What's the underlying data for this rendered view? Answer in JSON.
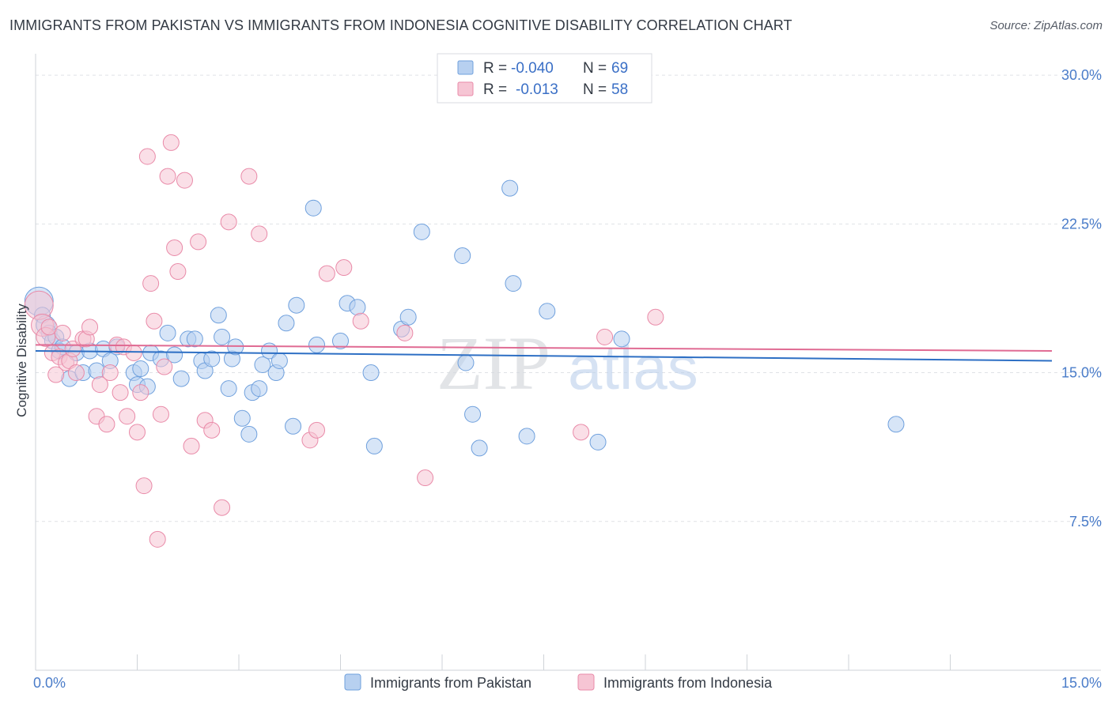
{
  "title": "IMMIGRANTS FROM PAKISTAN VS IMMIGRANTS FROM INDONESIA COGNITIVE DISABILITY CORRELATION CHART",
  "source": "Source: ZipAtlas.com",
  "watermark": {
    "zip": "ZIP",
    "atlas": "atlas"
  },
  "chart_data": {
    "type": "scatter",
    "ylabel": "Cognitive Disability",
    "xlim": [
      0,
      15
    ],
    "ylim": [
      0,
      31
    ],
    "x_ticks": [
      {
        "value": 0,
        "label": "0.0%"
      },
      {
        "value": 15,
        "label": "15.0%"
      }
    ],
    "x_minor_ticks": [
      1.5,
      3,
      4.5,
      6,
      7.5,
      9,
      10.5,
      12,
      13.5
    ],
    "y_ticks": [
      {
        "value": 7.5,
        "label": "7.5%"
      },
      {
        "value": 15,
        "label": "15.0%"
      },
      {
        "value": 22.5,
        "label": "22.5%"
      },
      {
        "value": 30,
        "label": "30.0%"
      }
    ],
    "legend": {
      "r_label": "R =",
      "n_label": "N =",
      "rows": [
        {
          "series": "Immigrants from Pakistan",
          "r": "-0.040",
          "n": "69"
        },
        {
          "series": "Immigrants from Indonesia",
          "r": "-0.013",
          "n": "58"
        }
      ]
    },
    "series": [
      {
        "name": "Immigrants from Pakistan",
        "color": "#6fa0dd",
        "fill": "#b7d0f0",
        "trend": {
          "x0": 0,
          "y0": 16.1,
          "x1": 15,
          "y1": 15.6
        },
        "trend_color": "#2d6fc4",
        "points": [
          [
            0.05,
            18.6,
            18
          ],
          [
            0.1,
            17.9,
            10
          ],
          [
            0.15,
            17.4,
            12
          ],
          [
            0.2,
            17.0,
            10
          ],
          [
            0.25,
            16.6,
            10
          ],
          [
            0.3,
            16.8,
            10
          ],
          [
            0.35,
            16.1,
            10
          ],
          [
            0.4,
            16.3,
            10
          ],
          [
            0.5,
            14.7,
            10
          ],
          [
            0.6,
            16.0,
            10
          ],
          [
            0.7,
            15.0,
            10
          ],
          [
            0.8,
            16.1,
            10
          ],
          [
            0.9,
            15.1,
            10
          ],
          [
            1.0,
            16.2,
            10
          ],
          [
            1.1,
            15.6,
            10
          ],
          [
            1.2,
            16.3,
            10
          ],
          [
            1.45,
            15.0,
            10
          ],
          [
            1.5,
            14.4,
            10
          ],
          [
            1.55,
            15.2,
            10
          ],
          [
            1.65,
            14.3,
            10
          ],
          [
            1.7,
            16.0,
            10
          ],
          [
            1.85,
            15.7,
            10
          ],
          [
            1.95,
            17.0,
            10
          ],
          [
            2.05,
            15.9,
            10
          ],
          [
            2.15,
            14.7,
            10
          ],
          [
            2.25,
            16.7,
            10
          ],
          [
            2.35,
            16.7,
            10
          ],
          [
            2.45,
            15.6,
            10
          ],
          [
            2.5,
            15.1,
            10
          ],
          [
            2.6,
            15.7,
            10
          ],
          [
            2.7,
            17.9,
            10
          ],
          [
            2.75,
            16.8,
            10
          ],
          [
            2.85,
            14.2,
            10
          ],
          [
            2.9,
            15.7,
            10
          ],
          [
            2.95,
            16.3,
            10
          ],
          [
            3.05,
            12.7,
            10
          ],
          [
            3.15,
            11.9,
            10
          ],
          [
            3.2,
            14.0,
            10
          ],
          [
            3.3,
            14.2,
            10
          ],
          [
            3.35,
            15.4,
            10
          ],
          [
            3.45,
            16.1,
            10
          ],
          [
            3.55,
            15.0,
            10
          ],
          [
            3.6,
            15.6,
            10
          ],
          [
            3.7,
            17.5,
            10
          ],
          [
            3.8,
            12.3,
            10
          ],
          [
            3.85,
            18.4,
            10
          ],
          [
            4.1,
            23.3,
            10
          ],
          [
            4.15,
            16.4,
            10
          ],
          [
            4.5,
            16.6,
            10
          ],
          [
            4.6,
            18.5,
            10
          ],
          [
            4.75,
            18.3,
            10
          ],
          [
            4.95,
            15.0,
            10
          ],
          [
            5.0,
            11.3,
            10
          ],
          [
            5.4,
            17.2,
            10
          ],
          [
            5.5,
            17.8,
            10
          ],
          [
            5.7,
            22.1,
            10
          ],
          [
            6.3,
            20.9,
            10
          ],
          [
            6.35,
            15.5,
            10
          ],
          [
            6.45,
            12.9,
            10
          ],
          [
            6.55,
            11.2,
            10
          ],
          [
            7.0,
            24.3,
            10
          ],
          [
            7.05,
            19.5,
            10
          ],
          [
            7.25,
            11.8,
            10
          ],
          [
            7.55,
            18.1,
            10
          ],
          [
            8.3,
            11.5,
            10
          ],
          [
            8.65,
            16.7,
            10
          ],
          [
            12.7,
            12.4,
            10
          ]
        ]
      },
      {
        "name": "Immigrants from Indonesia",
        "color": "#e98aa8",
        "fill": "#f6c5d4",
        "trend": {
          "x0": 0,
          "y0": 16.4,
          "x1": 15,
          "y1": 16.1
        },
        "trend_color": "#e06b93",
        "points": [
          [
            0.05,
            18.4,
            18
          ],
          [
            0.1,
            17.4,
            14
          ],
          [
            0.15,
            16.8,
            12
          ],
          [
            0.2,
            17.3,
            10
          ],
          [
            0.25,
            16.0,
            10
          ],
          [
            0.3,
            14.9,
            10
          ],
          [
            0.35,
            15.8,
            10
          ],
          [
            0.4,
            17.0,
            10
          ],
          [
            0.45,
            15.5,
            10
          ],
          [
            0.5,
            15.6,
            10
          ],
          [
            0.55,
            16.2,
            10
          ],
          [
            0.6,
            15.0,
            10
          ],
          [
            0.7,
            16.7,
            10
          ],
          [
            0.75,
            16.7,
            10
          ],
          [
            0.8,
            17.3,
            10
          ],
          [
            0.9,
            12.8,
            10
          ],
          [
            0.95,
            14.4,
            10
          ],
          [
            1.05,
            12.4,
            10
          ],
          [
            1.1,
            15.0,
            10
          ],
          [
            1.2,
            16.4,
            10
          ],
          [
            1.25,
            14.0,
            10
          ],
          [
            1.3,
            16.3,
            10
          ],
          [
            1.35,
            12.8,
            10
          ],
          [
            1.45,
            16.0,
            10
          ],
          [
            1.5,
            12.0,
            10
          ],
          [
            1.55,
            14.0,
            10
          ],
          [
            1.6,
            9.3,
            10
          ],
          [
            1.65,
            25.9,
            10
          ],
          [
            1.7,
            19.5,
            10
          ],
          [
            1.75,
            17.6,
            10
          ],
          [
            1.8,
            6.6,
            10
          ],
          [
            1.85,
            12.9,
            10
          ],
          [
            1.9,
            15.3,
            10
          ],
          [
            1.95,
            24.9,
            10
          ],
          [
            2.0,
            26.6,
            10
          ],
          [
            2.05,
            21.3,
            10
          ],
          [
            2.1,
            20.1,
            10
          ],
          [
            2.2,
            24.7,
            10
          ],
          [
            2.3,
            11.3,
            10
          ],
          [
            2.4,
            21.6,
            10
          ],
          [
            2.5,
            12.6,
            10
          ],
          [
            2.6,
            12.1,
            10
          ],
          [
            2.75,
            8.2,
            10
          ],
          [
            2.85,
            22.6,
            10
          ],
          [
            3.15,
            24.9,
            10
          ],
          [
            3.3,
            22.0,
            10
          ],
          [
            4.05,
            11.6,
            10
          ],
          [
            4.15,
            12.1,
            10
          ],
          [
            4.3,
            20.0,
            10
          ],
          [
            4.55,
            20.3,
            10
          ],
          [
            4.8,
            17.6,
            10
          ],
          [
            5.45,
            17.0,
            10
          ],
          [
            5.75,
            9.7,
            10
          ],
          [
            8.05,
            12.0,
            10
          ],
          [
            8.4,
            16.8,
            10
          ],
          [
            9.15,
            17.8,
            10
          ]
        ]
      }
    ]
  }
}
